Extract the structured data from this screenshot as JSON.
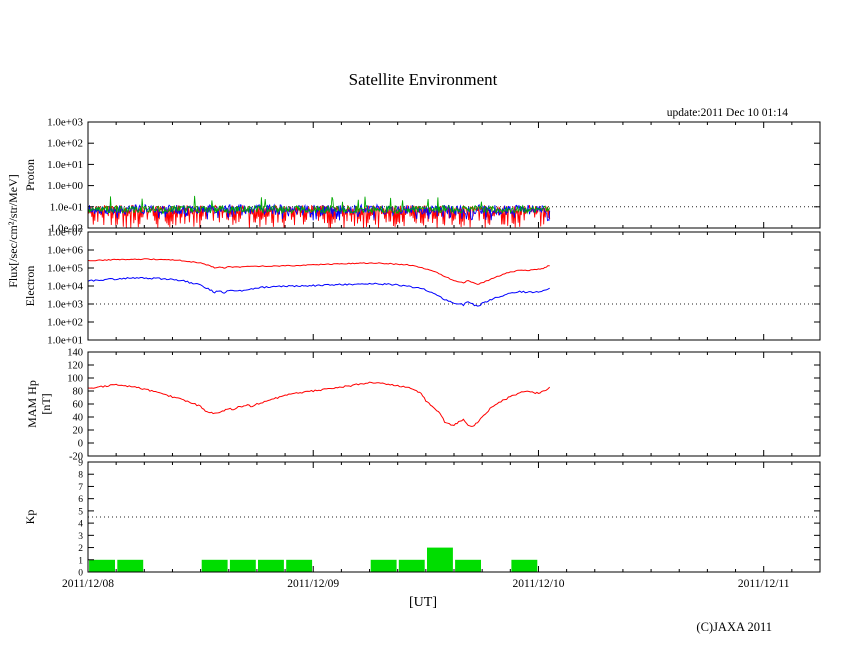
{
  "page": {
    "title": "Satellite Environment",
    "update_text": "update:2011 Dec 10 01:14",
    "xlabel": "[UT]",
    "copyright": "(C)JAXA 2011"
  },
  "axis_labels": {
    "flux": "Flux[/sec/cm²/str/MeV]",
    "panel1": "Proton",
    "panel2": "Electron",
    "panel3_line1": "MAM Hp",
    "panel3_line2": "[nT]",
    "panel4": "Kp"
  },
  "colors": {
    "red": "#ff0000",
    "blue": "#0000ff",
    "green_bar": "#00dd00",
    "frame": "#000000"
  },
  "chart_meta": {
    "x_range_hours": [
      0,
      78
    ],
    "xticks": {
      "hours": [
        0,
        24,
        48,
        72
      ],
      "labels": [
        "2011/12/08",
        "2011/12/09",
        "2011/12/10",
        "2011/12/11"
      ]
    }
  },
  "chart_data": [
    {
      "name": "proton-flux",
      "type": "line",
      "ylabel": "Proton",
      "yscale": "log",
      "ylim": [
        0.01,
        1000
      ],
      "ytick_values": [
        1000,
        100,
        10,
        1,
        0.1,
        0.01
      ],
      "ytick_labels": [
        "1.0e+03",
        "1.0e+02",
        "1.0e+01",
        "1.0e+00",
        "1.0e-01",
        "1.0e-02"
      ],
      "tick_font": 11,
      "gridlines": [
        0.1
      ],
      "data_end_hour": 49.2,
      "series": [
        {
          "name": "proton-red",
          "color": "#ff0000",
          "style": "noise-fill",
          "band_log10": [
            -2.0,
            -0.92
          ]
        },
        {
          "name": "proton-blue",
          "color": "#0000ff",
          "style": "noise-top",
          "band_log10": [
            -1.65,
            -0.8
          ]
        },
        {
          "name": "proton-green",
          "color": "#00aa00",
          "style": "noise-spikes",
          "band_log10": [
            -1.3,
            -0.95
          ],
          "spike_log10": [
            -0.78,
            -0.48
          ],
          "spike_prob": 0.02
        }
      ]
    },
    {
      "name": "electron-flux",
      "type": "line",
      "ylabel": "Electron",
      "yscale": "log",
      "ylim": [
        10,
        10000000.0
      ],
      "ytick_values": [
        10000000.0,
        1000000.0,
        100000.0,
        10000.0,
        1000.0,
        100.0,
        10
      ],
      "ytick_labels": [
        "1.0e+07",
        "1.0e+06",
        "1.0e+05",
        "1.0e+04",
        "1.0e+03",
        "1.0e+02",
        "1.0e+01"
      ],
      "tick_font": 11,
      "gridlines": [
        1000
      ],
      "data_end_hour": 49.2,
      "series": [
        {
          "name": "electron-red",
          "color": "#ff0000",
          "jitter": 0.05,
          "points": [
            [
              0,
              250000.0
            ],
            [
              2,
              280000.0
            ],
            [
              4,
              300000.0
            ],
            [
              6,
              310000.0
            ],
            [
              8,
              300000.0
            ],
            [
              10,
              260000.0
            ],
            [
              12,
              190000.0
            ],
            [
              13,
              130000.0
            ],
            [
              13.5,
              105000.0
            ],
            [
              14,
              115000.0
            ],
            [
              14.5,
              100000.0
            ],
            [
              15,
              120000.0
            ],
            [
              16,
              110000.0
            ],
            [
              17,
              120000.0
            ],
            [
              18,
              125000.0
            ],
            [
              20,
              130000.0
            ],
            [
              22,
              135000.0
            ],
            [
              24,
              150000.0
            ],
            [
              26,
              165000.0
            ],
            [
              28,
              180000.0
            ],
            [
              30,
              190000.0
            ],
            [
              31,
              185000.0
            ],
            [
              32,
              175000.0
            ],
            [
              33,
              160000.0
            ],
            [
              34,
              150000.0
            ],
            [
              35,
              120000.0
            ],
            [
              36,
              90000.0
            ],
            [
              37,
              60000.0
            ],
            [
              38,
              35000.0
            ],
            [
              39,
              20000.0
            ],
            [
              40,
              15000.0
            ],
            [
              40.5,
              20000.0
            ],
            [
              41,
              16000.0
            ],
            [
              41.5,
              12000.0
            ],
            [
              42,
              15000.0
            ],
            [
              42.5,
              19000.0
            ],
            [
              43,
              25000.0
            ],
            [
              44,
              40000.0
            ],
            [
              45,
              60000.0
            ],
            [
              46,
              75000.0
            ],
            [
              47,
              75000.0
            ],
            [
              48,
              85000.0
            ],
            [
              48.5,
              95000.0
            ],
            [
              49,
              130000.0
            ],
            [
              49.2,
              135000.0
            ]
          ]
        },
        {
          "name": "electron-blue",
          "color": "#0000ff",
          "jitter": 0.09,
          "points": [
            [
              0,
              19000.0
            ],
            [
              2,
              23000.0
            ],
            [
              4,
              27000.0
            ],
            [
              6,
              28000.0
            ],
            [
              8,
              25000.0
            ],
            [
              10,
              20000.0
            ],
            [
              12,
              11000.0
            ],
            [
              13,
              6000.0
            ],
            [
              13.5,
              4500.0
            ],
            [
              14,
              5200.0
            ],
            [
              14.5,
              4200.0
            ],
            [
              15,
              5500.0
            ],
            [
              16,
              5000.0
            ],
            [
              17,
              6500.0
            ],
            [
              18,
              8000.0
            ],
            [
              20,
              9500.0
            ],
            [
              22,
              10000.0
            ],
            [
              24,
              10500.0
            ],
            [
              26,
              11500.0
            ],
            [
              28,
              12500.0
            ],
            [
              30,
              13500.0
            ],
            [
              31,
              13000.0
            ],
            [
              32,
              12500.0
            ],
            [
              33,
              11500.0
            ],
            [
              34,
              10000.0
            ],
            [
              35,
              8000.0
            ],
            [
              36,
              6000.0
            ],
            [
              37,
              3500.0
            ],
            [
              38,
              1800.0
            ],
            [
              39,
              1200.0
            ],
            [
              40,
              900.0
            ],
            [
              40.5,
              1400.0
            ],
            [
              41,
              1000.0
            ],
            [
              41.5,
              700.0
            ],
            [
              42,
              1100.0
            ],
            [
              42.5,
              1400.0
            ],
            [
              43,
              1800.0
            ],
            [
              44,
              2800.0
            ],
            [
              45,
              4000.0
            ],
            [
              46,
              4800.0
            ],
            [
              47,
              4500.0
            ],
            [
              48,
              5000.0
            ],
            [
              48.5,
              5500.0
            ],
            [
              49,
              7000.0
            ],
            [
              49.2,
              7500.0
            ]
          ]
        }
      ]
    },
    {
      "name": "mam-hp",
      "type": "line",
      "ylabel": "MAM Hp [nT]",
      "yscale": "linear",
      "ylim": [
        -20,
        140
      ],
      "ytick_values": [
        140,
        120,
        100,
        80,
        60,
        40,
        20,
        0,
        -20
      ],
      "ytick_labels": [
        "140",
        "120",
        "100",
        "80",
        "60",
        "40",
        "20",
        "0",
        "-20"
      ],
      "tick_font": 10.5,
      "gridlines": [],
      "data_end_hour": 49.2,
      "series": [
        {
          "name": "mam-hp-red",
          "color": "#ff0000",
          "jitter": 2.4,
          "points": [
            [
              0,
              84
            ],
            [
              1,
              86
            ],
            [
              2,
              88
            ],
            [
              3,
              90
            ],
            [
              4,
              88
            ],
            [
              5,
              86
            ],
            [
              6,
              83
            ],
            [
              7,
              79
            ],
            [
              8,
              75
            ],
            [
              9,
              71
            ],
            [
              10,
              67
            ],
            [
              11,
              62
            ],
            [
              12,
              56
            ],
            [
              12.5,
              50
            ],
            [
              13,
              47
            ],
            [
              13.5,
              45
            ],
            [
              14,
              46
            ],
            [
              14.5,
              50
            ],
            [
              15,
              53
            ],
            [
              15.5,
              51
            ],
            [
              16,
              55
            ],
            [
              17,
              58
            ],
            [
              17.5,
              56
            ],
            [
              18,
              60
            ],
            [
              19,
              64
            ],
            [
              20,
              69
            ],
            [
              21,
              73
            ],
            [
              22,
              76
            ],
            [
              23,
              78
            ],
            [
              24,
              80
            ],
            [
              25,
              82
            ],
            [
              26,
              84
            ],
            [
              27,
              86
            ],
            [
              28,
              88
            ],
            [
              29,
              91
            ],
            [
              30,
              93
            ],
            [
              31,
              92
            ],
            [
              32,
              90
            ],
            [
              33,
              88
            ],
            [
              34,
              86
            ],
            [
              35,
              81
            ],
            [
              35.5,
              76
            ],
            [
              36,
              65
            ],
            [
              36.5,
              58
            ],
            [
              37,
              52
            ],
            [
              37.5,
              45
            ],
            [
              38,
              33
            ],
            [
              38.5,
              29
            ],
            [
              39,
              27
            ],
            [
              39.5,
              33
            ],
            [
              40,
              36
            ],
            [
              40.5,
              28
            ],
            [
              41,
              25
            ],
            [
              41.5,
              32
            ],
            [
              42,
              40
            ],
            [
              42.5,
              47
            ],
            [
              43,
              55
            ],
            [
              44,
              64
            ],
            [
              45,
              71
            ],
            [
              46,
              77
            ],
            [
              47,
              80
            ],
            [
              47.5,
              78
            ],
            [
              48,
              76
            ],
            [
              48.5,
              79
            ],
            [
              49,
              84
            ],
            [
              49.2,
              86
            ]
          ]
        }
      ]
    },
    {
      "name": "kp-index",
      "type": "bar",
      "ylabel": "Kp",
      "yscale": "linear",
      "ylim": [
        0,
        9
      ],
      "ytick_values": [
        9,
        8,
        7,
        6,
        5,
        4,
        3,
        2,
        1,
        0
      ],
      "ytick_labels": [
        "9",
        "8",
        "7",
        "6",
        "5",
        "4",
        "3",
        "2",
        "1",
        "0"
      ],
      "tick_font": 9.5,
      "gridlines": [
        4.5
      ],
      "bar_interval_hours": 3,
      "color": "#00dd00",
      "values": [
        1,
        1,
        0,
        0,
        1,
        1,
        1,
        1,
        0,
        0,
        1,
        1,
        2,
        1,
        0,
        1
      ]
    }
  ]
}
